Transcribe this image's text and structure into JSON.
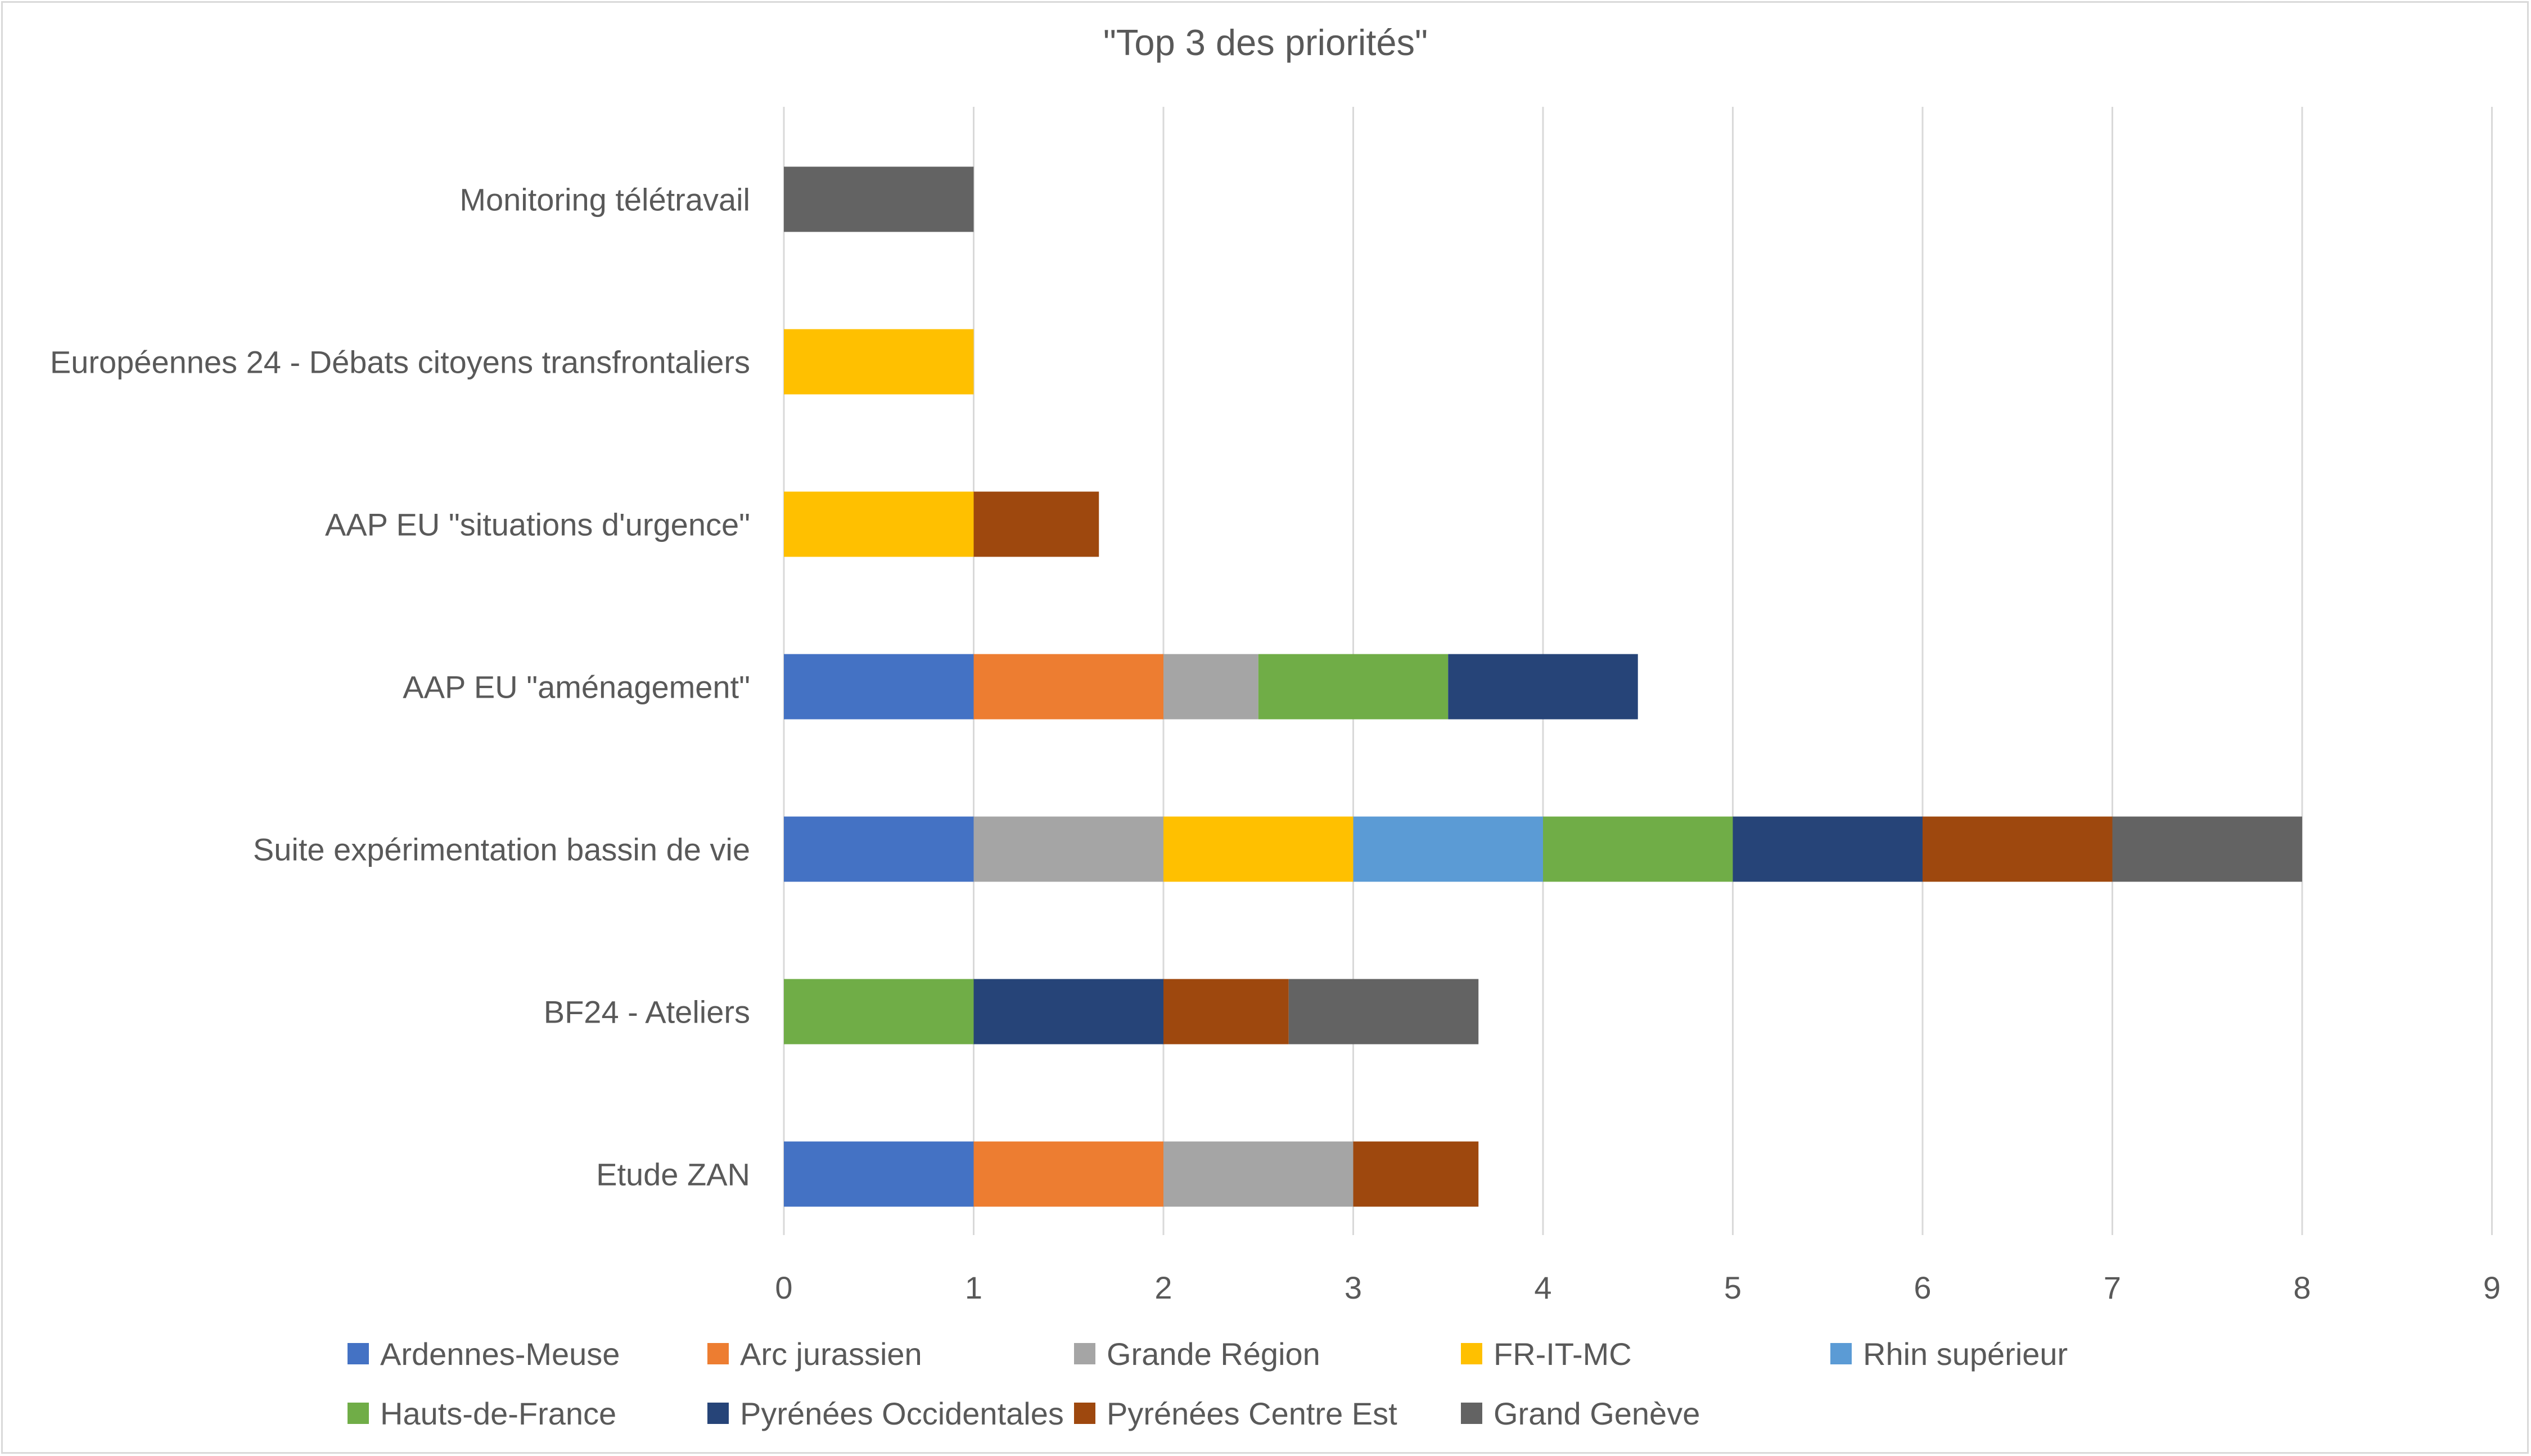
{
  "chart_data": {
    "type": "bar",
    "orientation": "horizontal",
    "stacked": true,
    "title": "\"Top 3 des priorités\"",
    "xlim": [
      0,
      9
    ],
    "x_ticks": [
      "0",
      "1",
      "2",
      "3",
      "4",
      "5",
      "6",
      "7",
      "8",
      "9"
    ],
    "grid": "vertical",
    "legend_position": "bottom",
    "categories": [
      "Monitoring télétravail",
      "Européennes 24 - Débats citoyens transfrontaliers",
      "AAP EU \"situations d'urgence\"",
      "AAP EU \"aménagement\"",
      "Suite expérimentation bassin de vie",
      "BF24 - Ateliers",
      "Etude ZAN"
    ],
    "series": [
      {
        "name": "Ardennes-Meuse",
        "color": "#4472c4",
        "values": [
          0,
          0,
          0,
          1,
          1,
          0,
          1
        ]
      },
      {
        "name": "Arc jurassien",
        "color": "#ed7d31",
        "values": [
          0,
          0,
          0,
          1,
          0,
          0,
          1
        ]
      },
      {
        "name": "Grande Région",
        "color": "#a5a5a5",
        "values": [
          0,
          0,
          0,
          0.5,
          1,
          0,
          1
        ]
      },
      {
        "name": "FR-IT-MC",
        "color": "#ffc000",
        "values": [
          0,
          1,
          1,
          0,
          1,
          0,
          0
        ]
      },
      {
        "name": "Rhin supérieur",
        "color": "#5b9bd5",
        "values": [
          0,
          0,
          0,
          0,
          1,
          0,
          0
        ]
      },
      {
        "name": "Hauts-de-France",
        "color": "#70ad47",
        "values": [
          0,
          0,
          0,
          1,
          1,
          1,
          0
        ]
      },
      {
        "name": "Pyrénées Occidentales",
        "color": "#264478",
        "values": [
          0,
          0,
          0,
          1,
          1,
          1,
          0
        ]
      },
      {
        "name": "Pyrénées Centre Est",
        "color": "#9e480e",
        "values": [
          0,
          0,
          0.66,
          0,
          1,
          0.66,
          0.66
        ]
      },
      {
        "name": "Grand Genève",
        "color": "#636363",
        "values": [
          1,
          0,
          0,
          0,
          1,
          1,
          0
        ]
      }
    ]
  }
}
